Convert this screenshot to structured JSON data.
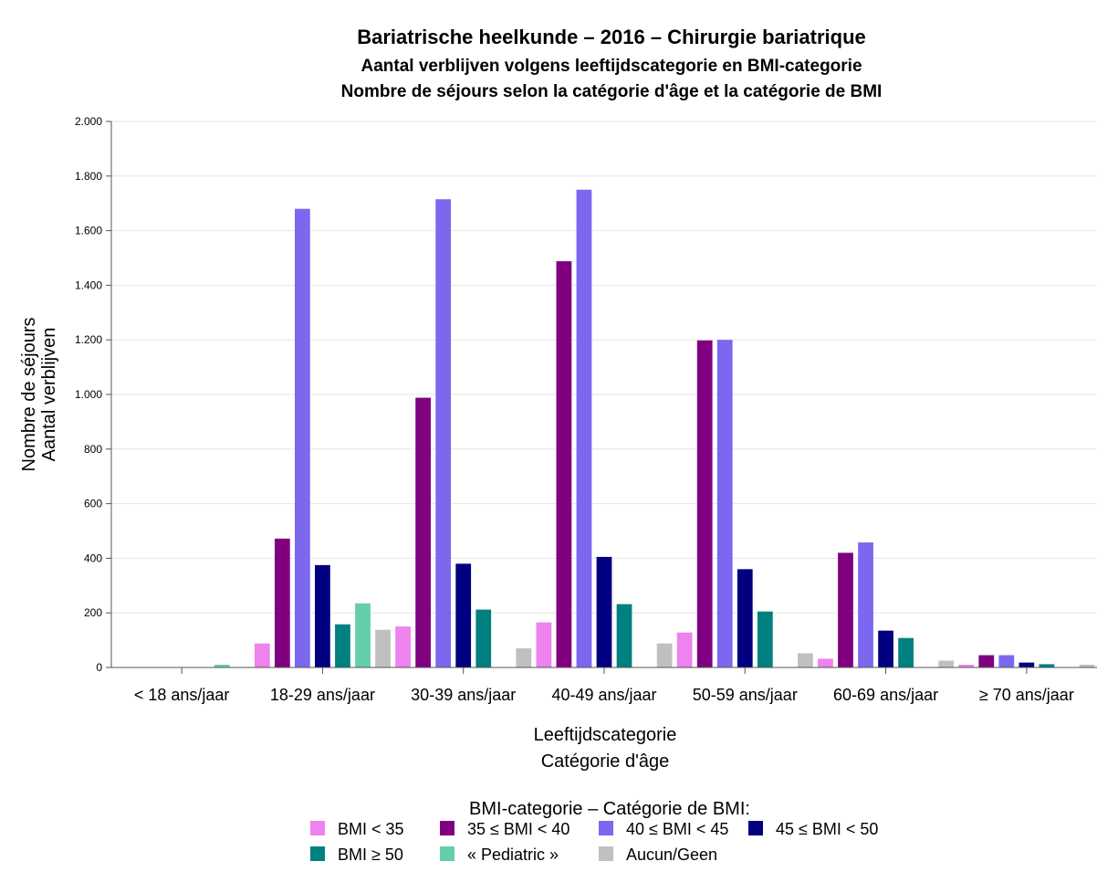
{
  "chart_data": {
    "type": "bar",
    "title": "Bariatrische heelkunde – 2016 – Chirurgie bariatrique",
    "subtitle_lines": [
      "Aantal verblijven volgens leeftijdscategorie en BMI-categorie",
      "Nombre de séjours selon la catégorie d'âge et la catégorie de BMI"
    ],
    "ylabel_lines": [
      "Nombre de séjours",
      "Aantal verblijven"
    ],
    "xlabel_lines": [
      "Leeftijdscategorie",
      "Catégorie d'âge"
    ],
    "ylim": [
      0,
      2000
    ],
    "yticks": [
      0,
      200,
      400,
      600,
      800,
      1000,
      1200,
      1400,
      1600,
      1800,
      2000
    ],
    "ytick_labels": [
      "0",
      "200",
      "400",
      "600",
      "800",
      "1.000",
      "1.200",
      "1.400",
      "1.600",
      "1.800",
      "2.000"
    ],
    "grid": true,
    "legend_title": "BMI-categorie – Catégorie de BMI:",
    "legend_position": "bottom",
    "categories": [
      "< 18 ans/jaar",
      "18-29 ans/jaar",
      "30-39 ans/jaar",
      "40-49 ans/jaar",
      "50-59 ans/jaar",
      "60-69 ans/jaar",
      "≥ 70 ans/jaar"
    ],
    "series": [
      {
        "name": "BMI < 35",
        "color": "#ee82ee",
        "values": [
          0,
          88,
          150,
          165,
          128,
          32,
          10
        ]
      },
      {
        "name": "35 ≤ BMI < 40",
        "color": "#800080",
        "values": [
          0,
          472,
          988,
          1488,
          1198,
          420,
          45
        ]
      },
      {
        "name": "40 ≤ BMI < 45",
        "color": "#7b68ee",
        "values": [
          0,
          1680,
          1715,
          1750,
          1200,
          458,
          45
        ]
      },
      {
        "name": "45 ≤ BMI < 50",
        "color": "#000080",
        "values": [
          0,
          375,
          380,
          405,
          360,
          135,
          18
        ]
      },
      {
        "name": "BMI ≥ 50",
        "color": "#008080",
        "values": [
          0,
          158,
          212,
          232,
          205,
          108,
          12
        ]
      },
      {
        "name": "« Pediatric »",
        "color": "#66cdaa",
        "values": [
          10,
          235,
          0,
          0,
          0,
          0,
          0
        ]
      },
      {
        "name": "Aucun/Geen",
        "color": "#c0c0c0",
        "values": [
          0,
          138,
          70,
          88,
          52,
          25,
          10
        ]
      }
    ]
  }
}
